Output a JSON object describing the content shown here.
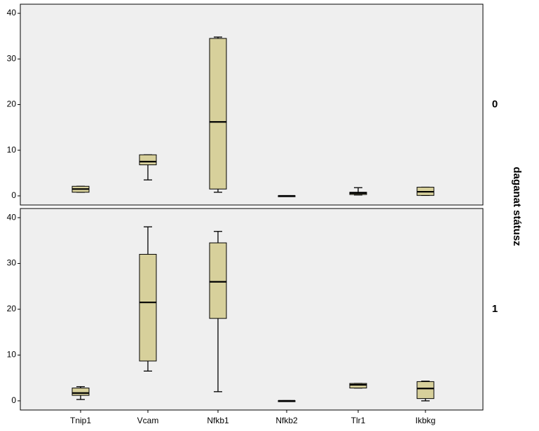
{
  "chart_data": {
    "type": "boxplot",
    "panel_axis_title": "daganat státusz",
    "categories": [
      "Tnip1",
      "Vcam",
      "Nfkb1",
      "Nfkb2",
      "Tlr1",
      "Ikbkg"
    ],
    "ylim": [
      -2,
      42
    ],
    "yticks": [
      0,
      10,
      20,
      30,
      40
    ],
    "grid": false,
    "colors": {
      "box_fill": "#d7d09b",
      "panel_bg": "#efefef",
      "border": "#000000"
    },
    "panels": [
      {
        "label": "0",
        "boxes": [
          {
            "category": "Tnip1",
            "min": 0.8,
            "q1": 0.8,
            "median": 1.5,
            "q3": 2.1,
            "max": 2.1
          },
          {
            "category": "Vcam",
            "min": 3.5,
            "q1": 6.8,
            "median": 7.5,
            "q3": 9.0,
            "max": 9.0
          },
          {
            "category": "Nfkb1",
            "min": 0.8,
            "q1": 1.5,
            "median": 16.2,
            "q3": 34.5,
            "max": 34.8
          },
          {
            "category": "Nfkb2",
            "min": 0.0,
            "q1": 0.0,
            "median": 0.0,
            "q3": 0.05,
            "max": 0.05
          },
          {
            "category": "Tlr1",
            "min": 0.2,
            "q1": 0.3,
            "median": 0.6,
            "q3": 0.8,
            "max": 1.8
          },
          {
            "category": "Ikbkg",
            "min": 0.1,
            "q1": 0.1,
            "median": 0.9,
            "q3": 1.9,
            "max": 1.9
          }
        ]
      },
      {
        "label": "1",
        "boxes": [
          {
            "category": "Tnip1",
            "min": 0.3,
            "q1": 1.2,
            "median": 1.7,
            "q3": 2.8,
            "max": 3.1
          },
          {
            "category": "Vcam",
            "min": 6.5,
            "q1": 8.7,
            "median": 21.5,
            "q3": 32.0,
            "max": 38.0
          },
          {
            "category": "Nfkb1",
            "min": 2.0,
            "q1": 18.0,
            "median": 26.0,
            "q3": 34.5,
            "max": 37.0
          },
          {
            "category": "Nfkb2",
            "min": 0.0,
            "q1": 0.0,
            "median": 0.0,
            "q3": 0.05,
            "max": 0.05
          },
          {
            "category": "Tlr1",
            "min": 2.8,
            "q1": 2.8,
            "median": 3.5,
            "q3": 3.8,
            "max": 3.8
          },
          {
            "category": "Ikbkg",
            "min": 0.0,
            "q1": 0.5,
            "median": 2.7,
            "q3": 4.2,
            "max": 4.3
          }
        ]
      }
    ]
  }
}
